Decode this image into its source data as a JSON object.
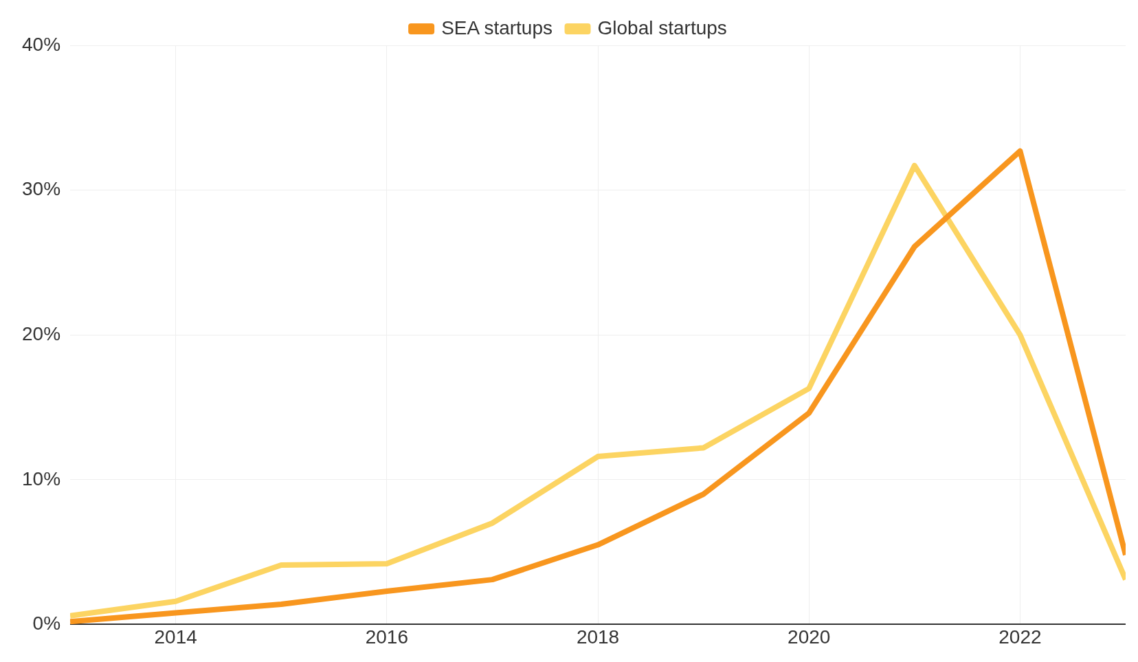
{
  "chart_data": {
    "type": "line",
    "x": [
      2013,
      2014,
      2015,
      2016,
      2017,
      2018,
      2019,
      2020,
      2021,
      2022,
      2023
    ],
    "series": [
      {
        "name": "SEA startups",
        "color": "#f8961e",
        "values": [
          0.2,
          0.8,
          1.4,
          2.3,
          3.1,
          5.5,
          9.0,
          14.6,
          26.1,
          32.7,
          4.8
        ]
      },
      {
        "name": "Global startups",
        "color": "#fcd462",
        "values": [
          0.6,
          1.6,
          4.1,
          4.2,
          7.0,
          11.6,
          12.2,
          16.3,
          31.7,
          20.0,
          3.1
        ]
      }
    ],
    "xlim": [
      2013,
      2023
    ],
    "xticks": [
      2014,
      2016,
      2018,
      2020,
      2022
    ],
    "ylim": [
      0,
      40
    ],
    "yticks": [
      {
        "value": 0,
        "label": "0%"
      },
      {
        "value": 10,
        "label": "10%"
      },
      {
        "value": 20,
        "label": "20%"
      },
      {
        "value": 30,
        "label": "30%"
      },
      {
        "value": 40,
        "label": "40%"
      }
    ],
    "grid": true,
    "legend": "top",
    "marker": "none",
    "line_style": "solid"
  }
}
